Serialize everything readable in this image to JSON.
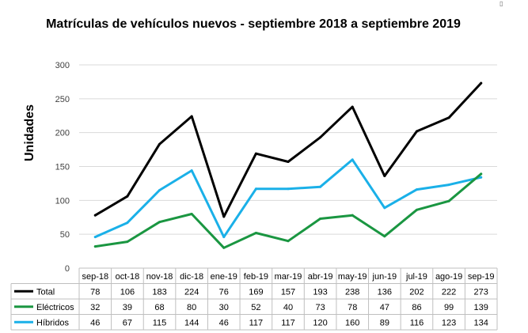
{
  "chart_data": {
    "type": "line",
    "title": "Matrículas de vehículos nuevos - septiembre 2018 a septiembre 2019",
    "ylabel": "Unidades",
    "xlabel": "",
    "ylim": [
      0,
      300
    ],
    "yticks": [
      0,
      50,
      100,
      150,
      200,
      250,
      300
    ],
    "grid": true,
    "legend": "data-table",
    "categories": [
      "sep-18",
      "oct-18",
      "nov-18",
      "dic-18",
      "ene-19",
      "feb-19",
      "mar-19",
      "abr-19",
      "may-19",
      "jun-19",
      "jul-19",
      "ago-19",
      "sep-19"
    ],
    "series": [
      {
        "name": "Total",
        "color": "#000000",
        "values": [
          78,
          106,
          183,
          224,
          76,
          169,
          157,
          193,
          238,
          136,
          202,
          222,
          273
        ]
      },
      {
        "name": "Eléctricos",
        "color": "#1a9641",
        "values": [
          32,
          39,
          68,
          80,
          30,
          52,
          40,
          73,
          78,
          47,
          86,
          99,
          139
        ]
      },
      {
        "name": "Híbridos",
        "color": "#1ab0e8",
        "values": [
          46,
          67,
          115,
          144,
          46,
          117,
          117,
          120,
          160,
          89,
          116,
          123,
          134
        ]
      }
    ]
  }
}
